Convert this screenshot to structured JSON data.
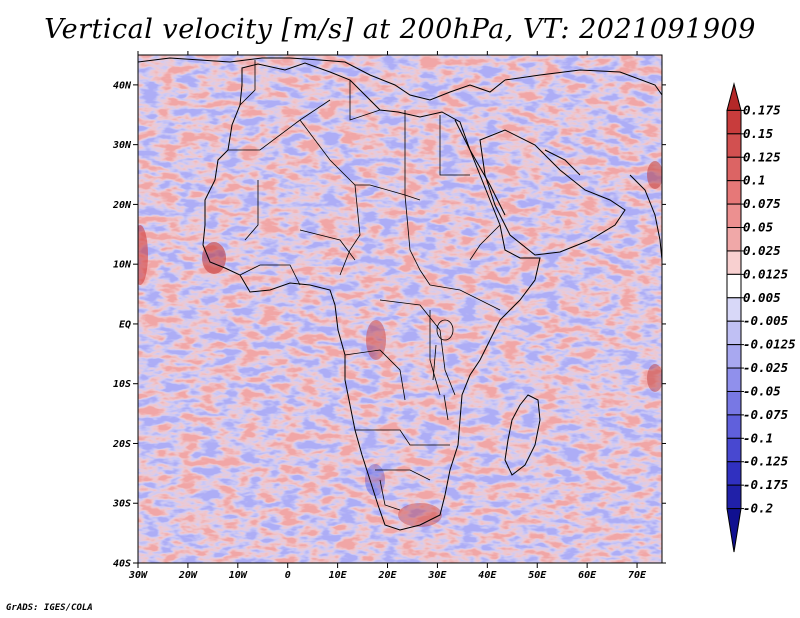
{
  "title": "Vertical velocity [m/s] at 200hPa, VT: 2021091909",
  "footer": "GrADS: IGES/COLA",
  "axes": {
    "lon_labels": [
      "30W",
      "20W",
      "10W",
      "0",
      "10E",
      "20E",
      "30E",
      "40E",
      "50E",
      "60E",
      "70E"
    ],
    "lat_labels": [
      "40N",
      "30N",
      "20N",
      "10N",
      "EQ",
      "10S",
      "20S",
      "30S",
      "40S"
    ],
    "lon_range": [
      -30,
      75
    ],
    "lat_range": [
      -40,
      45
    ]
  },
  "colorbar": {
    "labels": [
      "0.175",
      "0.15",
      "0.125",
      "0.1",
      "0.075",
      "0.05",
      "0.025",
      "0.0125",
      "0.005",
      "-0.005",
      "-0.0125",
      "-0.025",
      "-0.05",
      "-0.075",
      "-0.1",
      "-0.125",
      "-0.175",
      "-0.2"
    ],
    "colors": [
      "#b42828",
      "#c83c3c",
      "#d25050",
      "#dc6464",
      "#e67878",
      "#ec9090",
      "#f0a8a8",
      "#f8d0d0",
      "#ffffff",
      "#d8d8f8",
      "#c0c0f4",
      "#a8a8f0",
      "#9090ec",
      "#7878e4",
      "#6060dc",
      "#4848d0",
      "#3030c0",
      "#2020a8",
      "#101090"
    ]
  },
  "field_colors": {
    "up": "#e06060",
    "down": "#6a6ae6",
    "neutral": "#f2eef8"
  }
}
